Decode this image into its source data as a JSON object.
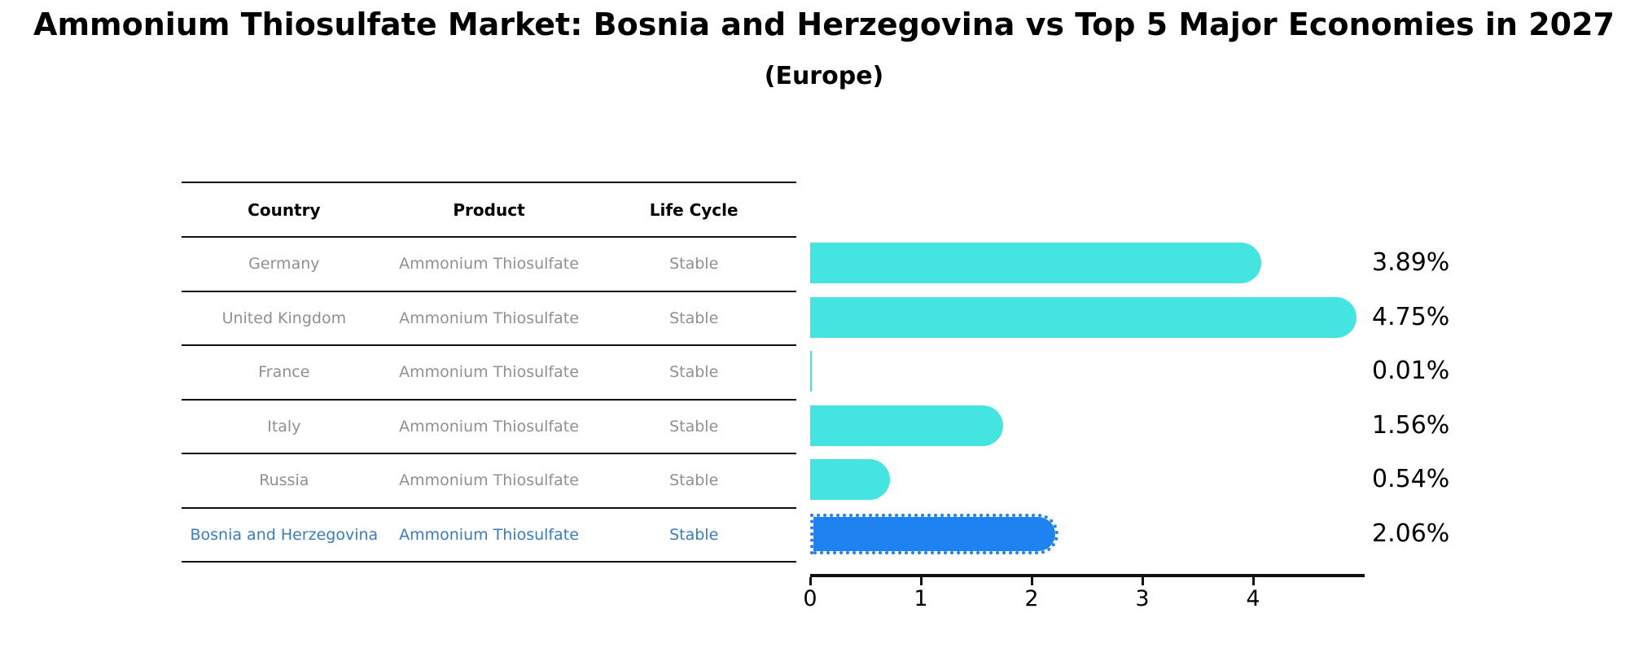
{
  "header": {
    "title": "Ammonium Thiosulfate Market: Bosnia and Herzegovina vs Top 5 Major Economies in 2027",
    "subtitle": "(Europe)"
  },
  "table": {
    "columns": [
      "Country",
      "Product",
      "Life Cycle"
    ],
    "rows": [
      {
        "country": "Germany",
        "product": "Ammonium Thiosulfate",
        "life_cycle": "Stable",
        "highlight": false
      },
      {
        "country": "United Kingdom",
        "product": "Ammonium Thiosulfate",
        "life_cycle": "Stable",
        "highlight": false
      },
      {
        "country": "France",
        "product": "Ammonium Thiosulfate",
        "life_cycle": "Stable",
        "highlight": false
      },
      {
        "country": "Italy",
        "product": "Ammonium Thiosulfate",
        "life_cycle": "Stable",
        "highlight": false
      },
      {
        "country": "Russia",
        "product": "Ammonium Thiosulfate",
        "life_cycle": "Stable",
        "highlight": false
      },
      {
        "country": "Bosnia and Herzegovina",
        "product": "Ammonium Thiosulfate",
        "life_cycle": "Stable",
        "highlight": true
      }
    ]
  },
  "chart_data": {
    "type": "bar",
    "orientation": "horizontal",
    "title": "Ammonium Thiosulfate Market: Bosnia and Herzegovina vs Top 5 Major Economies in 2027",
    "subtitle": "(Europe)",
    "categories": [
      "Germany",
      "United Kingdom",
      "France",
      "Italy",
      "Russia",
      "Bosnia and Herzegovina"
    ],
    "values": [
      3.89,
      4.75,
      0.01,
      1.56,
      0.54,
      2.06
    ],
    "display_labels": [
      "3.89%",
      "4.75%",
      "0.01%",
      "1.56%",
      "0.54%",
      "2.06%"
    ],
    "xlabel": "",
    "ylabel": "",
    "xlim": [
      0,
      5
    ],
    "xticks": [
      "0",
      "1",
      "2",
      "3",
      "4"
    ],
    "grid": false,
    "legend": "none",
    "bar_color": "#44E4E0",
    "highlight_index": 5,
    "highlight_color": "#1E82F0",
    "highlight_edge_style": "dotted",
    "highlight_text_color": "#3B7CBE",
    "text_gray": "#909090"
  }
}
